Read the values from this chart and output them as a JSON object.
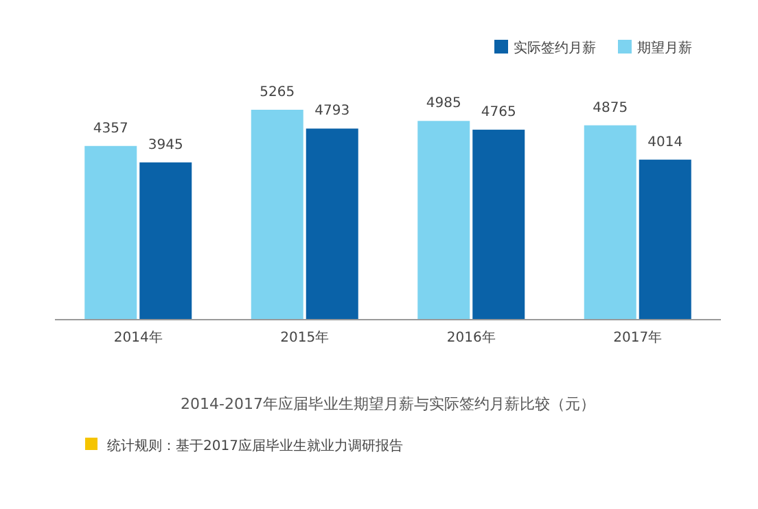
{
  "chart_data": {
    "type": "bar",
    "title": "2014-2017年应届毕业生期望月薪与实际签约月薪比较（元）",
    "categories": [
      "2014年",
      "2015年",
      "2016年",
      "2017年"
    ],
    "series": [
      {
        "name": "期望月薪",
        "color": "#7dd3f0",
        "values": [
          4357,
          5265,
          4985,
          4875
        ]
      },
      {
        "name": "实际签约月薪",
        "color": "#0a62a8",
        "values": [
          3945,
          4793,
          4765,
          4014
        ]
      }
    ],
    "data_labels": true,
    "legend": "top right",
    "annotations": [
      "统计规则：基于2017应届毕业生就业力调研报告"
    ]
  }
}
